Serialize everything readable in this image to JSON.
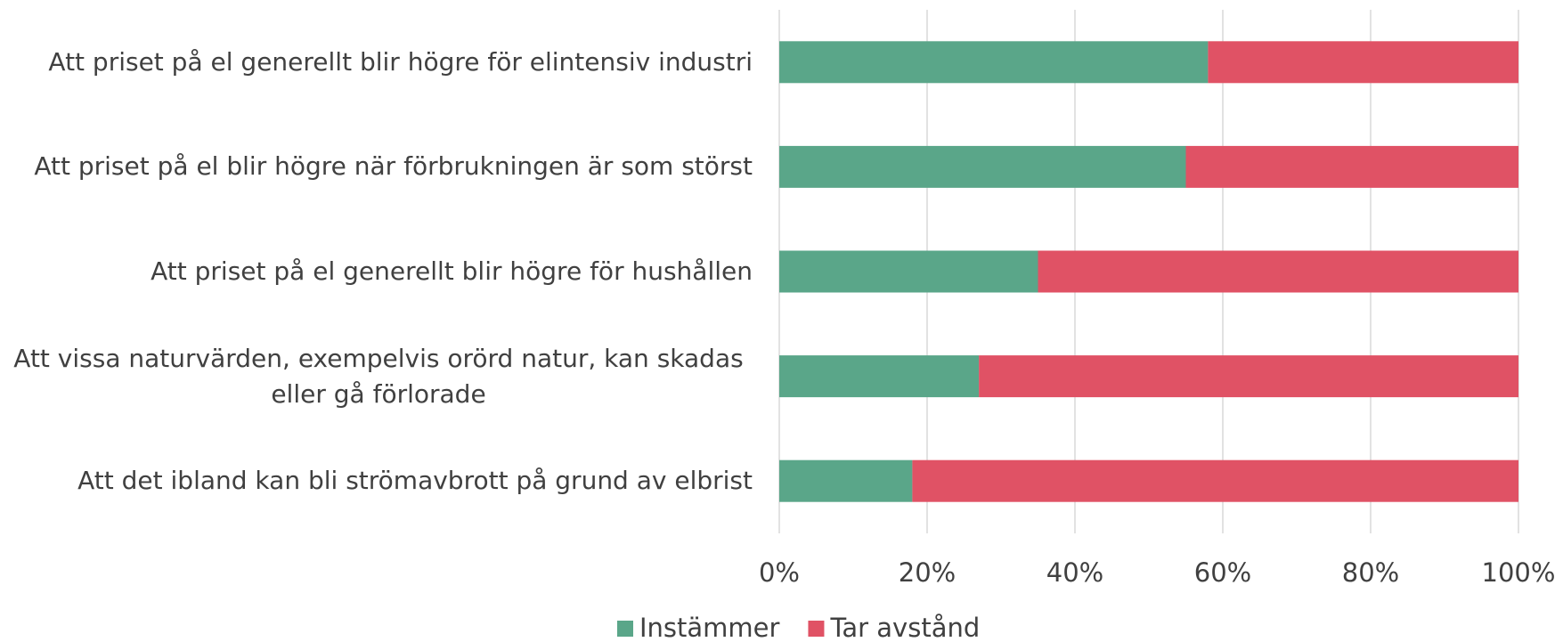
{
  "chart_data": {
    "type": "stacked-bar-horizontal",
    "categories": [
      "Att priset på el generellt blir högre för elintensiv industri",
      "Att priset på el blir högre när förbrukningen är som störst",
      "Att priset på el generellt blir högre för hushållen",
      "Att vissa naturvärden, exempelvis orörd natur, kan skadas eller gå förlorade",
      "Att det ibland kan bli strömavbrott på grund av elbrist"
    ],
    "series": [
      {
        "name": "Instämmer",
        "color": "#5aa689",
        "values": [
          58,
          55,
          35,
          27,
          18
        ]
      },
      {
        "name": "Tar avstånd",
        "color": "#e05265",
        "values": [
          42,
          45,
          65,
          73,
          82
        ]
      }
    ],
    "xlim": [
      0,
      100
    ],
    "xticks": [
      {
        "value": 0,
        "label": "0%"
      },
      {
        "value": 20,
        "label": "20%"
      },
      {
        "value": 40,
        "label": "40%"
      },
      {
        "value": 60,
        "label": "60%"
      },
      {
        "value": 80,
        "label": "80%"
      },
      {
        "value": 100,
        "label": "100%"
      }
    ],
    "grid": true,
    "legend": "bottom"
  }
}
